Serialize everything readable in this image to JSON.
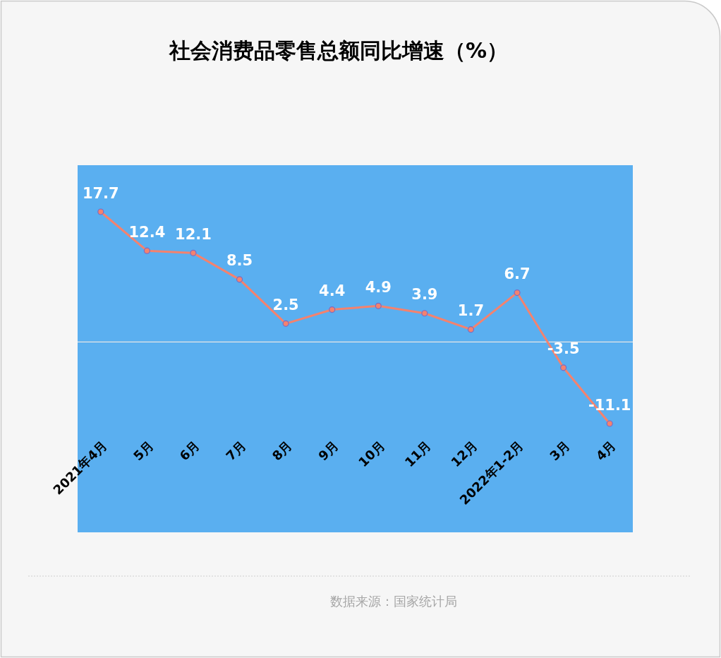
{
  "chart_data": {
    "type": "line",
    "title": "社会消费品零售总额同比增速（%）",
    "categories": [
      "2021年4月",
      "5月",
      "6月",
      "7月",
      "8月",
      "9月",
      "10月",
      "11月",
      "12月",
      "2022年1-2月",
      "3月",
      "4月"
    ],
    "series": [
      {
        "color": "#f4826e",
        "values": [
          17.7,
          12.4,
          12.1,
          8.5,
          2.5,
          4.4,
          4.9,
          3.9,
          1.7,
          6.7,
          -3.5,
          -11.1
        ]
      }
    ],
    "data_labels": true,
    "marker": "circle",
    "line_style": "solid",
    "grid": false,
    "annotations": [
      "数据来源：国家统计局"
    ]
  }
}
